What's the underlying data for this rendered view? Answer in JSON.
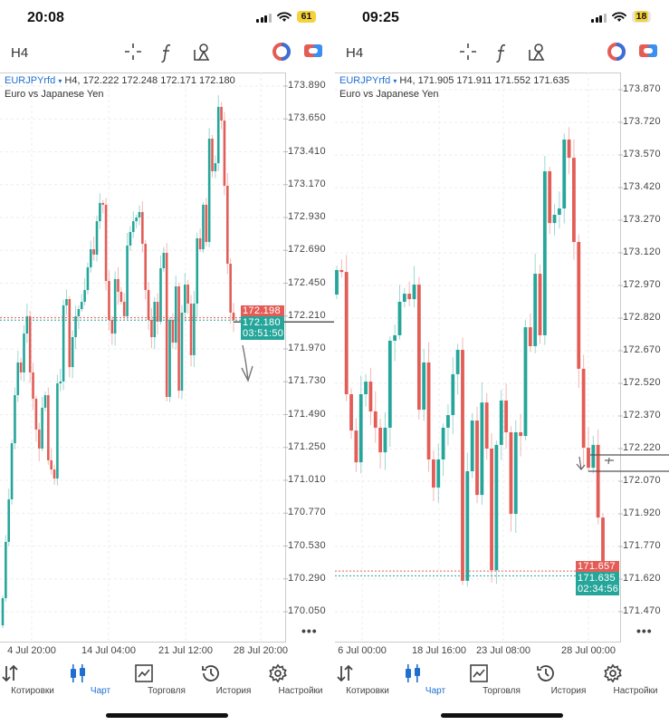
{
  "colors": {
    "up": "#26a69a",
    "down": "#e35d57",
    "accent": "#1f6fd1",
    "ask": "#e35d57",
    "bid": "#26a69a"
  },
  "nav": [
    {
      "label": "Котировки",
      "icon": "quotes-arrows-icon"
    },
    {
      "label": "Чарт",
      "icon": "candlestick-chart-icon",
      "active": true
    },
    {
      "label": "Торговля",
      "icon": "trade-chart-icon"
    },
    {
      "label": "История",
      "icon": "history-clock-icon"
    },
    {
      "label": "Настройки",
      "icon": "settings-gear-icon"
    }
  ],
  "panels": [
    {
      "status": {
        "time": "20:08",
        "battery": "61"
      },
      "timeframe": "H4",
      "legend": {
        "symbol": "EURJPYrfd",
        "dropdown": "▾",
        "info": "H4, 172.222 172.248 172.171 172.180",
        "description": "Euro vs Japanese Yen"
      },
      "bid_label": {
        "price": "172.180",
        "countdown": "03:51:50"
      },
      "ask_label": "172.198",
      "more": "•••",
      "chart_data": {
        "type": "candlestick",
        "y_ticks": [
          "173.890",
          "173.650",
          "173.410",
          "173.170",
          "172.930",
          "172.690",
          "172.450",
          "172.210",
          "171.970",
          "171.730",
          "171.490",
          "171.250",
          "171.010",
          "170.770",
          "170.530",
          "170.290",
          "170.050"
        ],
        "ylim": [
          170.05,
          173.89
        ],
        "x_ticks": [
          "4 Jul 20:00",
          "14 Jul 04:00",
          "21 Jul 12:00",
          "28 Jul 20:00"
        ],
        "first_open": 169.95,
        "closes": [
          170.149,
          170.56,
          170.871,
          171.281,
          171.632,
          171.871,
          171.798,
          172.082,
          172.208,
          171.798,
          171.606,
          171.381,
          171.242,
          171.54,
          171.632,
          171.156,
          171.089,
          171.023,
          171.718,
          171.732,
          172.288,
          172.334,
          171.837,
          172.056,
          172.208,
          172.261,
          172.314,
          172.4,
          172.566,
          172.698,
          172.659,
          172.903,
          173.036,
          173.023,
          172.466,
          172.182,
          172.082,
          172.48,
          172.387,
          172.314,
          172.208,
          172.725,
          172.824,
          172.903,
          172.93,
          172.97,
          172.738,
          172.4,
          172.182,
          172.056,
          172.314,
          172.169,
          172.559,
          172.672,
          171.619,
          172.182,
          172.016,
          172.427,
          171.665,
          172.235,
          172.44,
          172.301,
          171.924,
          172.301,
          172.778,
          172.698,
          173.023,
          172.751,
          173.506,
          173.268,
          173.327,
          173.738,
          173.638,
          173.162,
          172.592,
          172.235,
          172.18
        ],
        "bid": 172.18,
        "ask": 172.198
      }
    },
    {
      "status": {
        "time": "09:25",
        "battery": "18"
      },
      "timeframe": "H4",
      "legend": {
        "symbol": "EURJPYrfd",
        "dropdown": "▾",
        "info": "H4, 171.905 171.911 171.552 171.635",
        "description": "Euro vs Japanese Yen"
      },
      "bid_label": {
        "price": "171.635",
        "countdown": "02:34:56"
      },
      "ask_label": "171.657",
      "more": "•••",
      "chart_data": {
        "type": "candlestick",
        "y_ticks": [
          "173.870",
          "173.720",
          "173.570",
          "173.420",
          "173.270",
          "173.120",
          "172.970",
          "172.820",
          "172.670",
          "172.520",
          "172.370",
          "172.220",
          "172.070",
          "171.920",
          "171.770",
          "171.620",
          "171.470"
        ],
        "ylim": [
          171.47,
          173.87
        ],
        "x_ticks": [
          "6 Jul 00:00",
          "18 Jul 16:00",
          "23 Jul 08:00",
          "28 Jul 00:00"
        ],
        "first_open": 172.928,
        "closes": [
          173.041,
          173.032,
          172.47,
          172.303,
          172.157,
          172.47,
          172.528,
          172.391,
          172.316,
          172.203,
          172.316,
          172.716,
          172.741,
          172.895,
          172.932,
          172.907,
          172.974,
          172.399,
          172.616,
          172.17,
          172.041,
          172.17,
          172.316,
          172.374,
          172.562,
          172.674,
          171.612,
          172.116,
          172.349,
          172.007,
          172.432,
          172.22,
          171.661,
          172.237,
          172.441,
          172.295,
          171.92,
          172.295,
          172.278,
          172.778,
          172.691,
          173.024,
          172.741,
          173.495,
          173.257,
          173.295,
          173.324,
          173.641,
          173.557,
          173.17,
          172.587,
          172.224,
          172.132,
          172.237,
          171.903,
          171.635
        ],
        "bid": 171.635,
        "ask": 171.657
      }
    }
  ]
}
